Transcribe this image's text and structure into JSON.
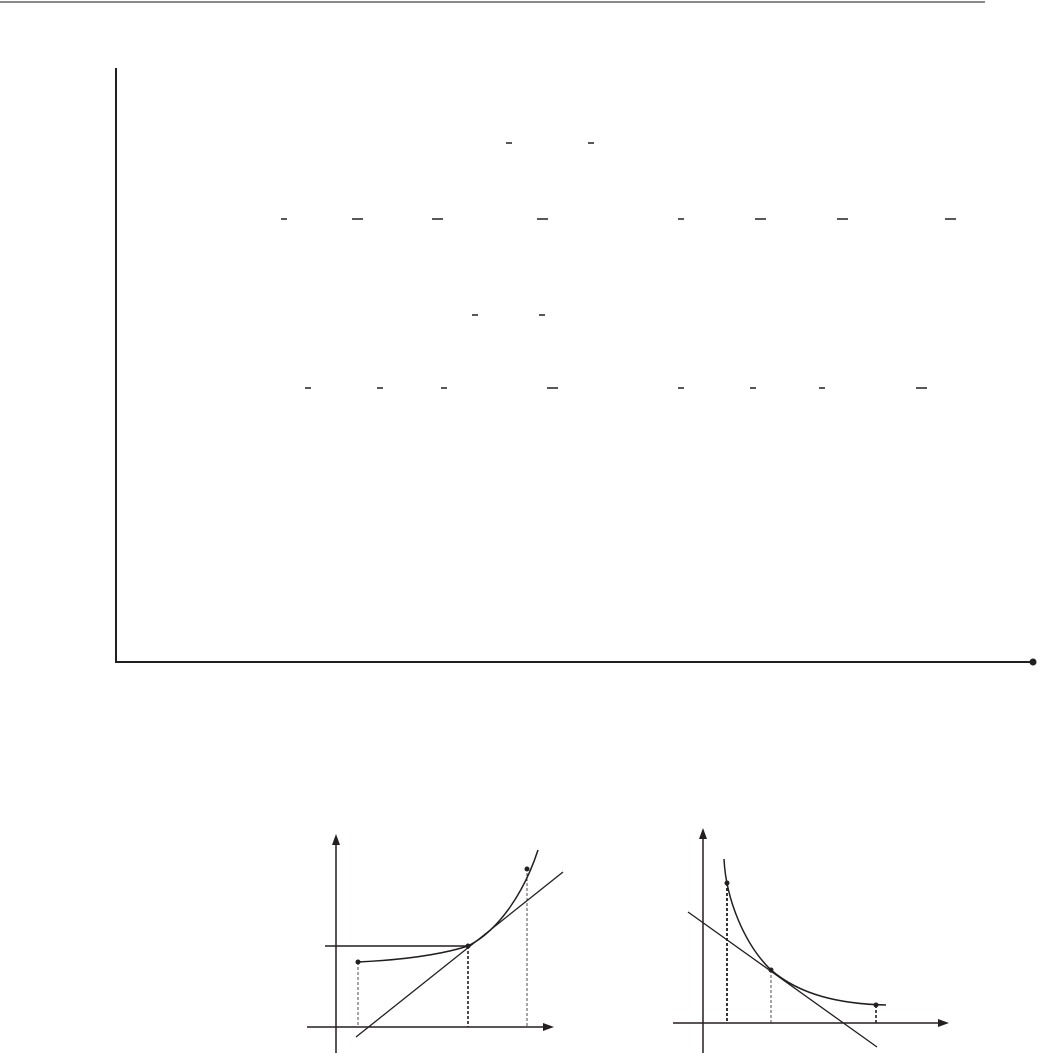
{
  "colors": {
    "ink": "#231f20",
    "rule": "#8a8a8a",
    "background": "#ffffff"
  },
  "figures": [
    {
      "description_type": "increasing-convex-curve-with-tangent",
      "points_marked": 3
    },
    {
      "description_type": "decreasing-convex-curve-with-tangent",
      "points_marked": 3
    }
  ]
}
